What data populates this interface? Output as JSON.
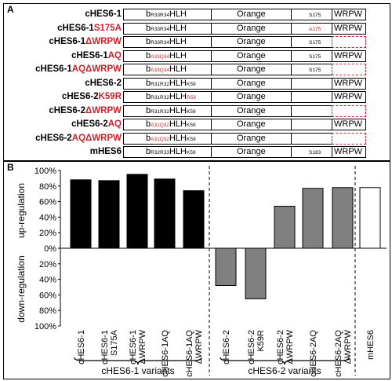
{
  "panel_a": {
    "label": "A",
    "rows": [
      {
        "name": "cHES6-1",
        "mut": "",
        "bsub": "R33R34",
        "bsub_red": false,
        "after": "HLH",
        "k": "",
        "k_red": false,
        "site": "S175",
        "site_red": false,
        "wrpw": "WRPW",
        "deleted": false
      },
      {
        "name": "cHES6-1",
        "mut": "S175A",
        "bsub": "R33R34",
        "bsub_red": false,
        "after": "HLH",
        "k": "",
        "k_red": false,
        "site": "A175",
        "site_red": true,
        "wrpw": "WRPW",
        "deleted": false
      },
      {
        "name": "cHES6-1",
        "mut": "ΔWRPW",
        "bsub": "R33R34",
        "bsub_red": false,
        "after": "HLH",
        "k": "",
        "k_red": false,
        "site": "S175",
        "site_red": false,
        "wrpw": "",
        "deleted": true
      },
      {
        "name": "cHES6-1",
        "mut": "AQ",
        "bsub": "A33Q34",
        "bsub_red": true,
        "after": "HLH",
        "k": "",
        "k_red": false,
        "site": "S175",
        "site_red": false,
        "wrpw": "WRPW",
        "deleted": false
      },
      {
        "name": "cHES6-1",
        "mut": "AQΔWRPW",
        "bsub": "A33Q34",
        "bsub_red": true,
        "after": "HLH",
        "k": "",
        "k_red": false,
        "site": "S175",
        "site_red": false,
        "wrpw": "",
        "deleted": true
      },
      {
        "name": "cHES6-2",
        "mut": "",
        "bsub": "R31R32",
        "bsub_red": false,
        "after": "HLH",
        "k": "K59",
        "k_red": false,
        "site": "",
        "site_red": false,
        "wrpw": "WRPW",
        "deleted": false
      },
      {
        "name": "cHES6-2",
        "mut": "K59R",
        "bsub": "R31R32",
        "bsub_red": false,
        "after": "HLH",
        "k": "R59",
        "k_red": true,
        "site": "",
        "site_red": false,
        "wrpw": "WRPW",
        "deleted": false
      },
      {
        "name": "cHES6-2",
        "mut": "ΔWRPW",
        "bsub": "R31R32",
        "bsub_red": false,
        "after": "HLH",
        "k": "K59",
        "k_red": false,
        "site": "",
        "site_red": false,
        "wrpw": "",
        "deleted": true
      },
      {
        "name": "cHES6-2",
        "mut": "AQ",
        "bsub": "A31Q32",
        "bsub_red": true,
        "after": "HLH",
        "k": "K59",
        "k_red": false,
        "site": "",
        "site_red": false,
        "wrpw": "WRPW",
        "deleted": false
      },
      {
        "name": "cHES6-2",
        "mut": "AQΔWRPW",
        "bsub": "A31Q32",
        "bsub_red": true,
        "after": "HLH",
        "k": "K59",
        "k_red": false,
        "site": "",
        "site_red": false,
        "wrpw": "",
        "deleted": true
      },
      {
        "name": "mHES6",
        "mut": "",
        "bsub": "R32R33",
        "bsub_red": false,
        "after": "HLH",
        "k": "K59",
        "k_red": false,
        "site": "S183",
        "site_red": false,
        "wrpw": "WRPW",
        "deleted": false
      }
    ],
    "orange_label": "Orange",
    "b_label": "b"
  },
  "panel_b": {
    "label": "B"
  },
  "chart_data": {
    "type": "bar",
    "categories": [
      "cHES6-1",
      "cHES6-1 S175A",
      "cHES6-1 ΔWRPW",
      "cHES6-1AQ",
      "cHES6-1AQ ΔWRPW",
      "cHES6-2",
      "cHES6-2 K59R",
      "cHES6-2 ΔWRPW",
      "cHES6-2AQ",
      "cHES6-2AQ ΔWRPW",
      "mHES6"
    ],
    "values": [
      88,
      87,
      95,
      89,
      74,
      -48,
      -65,
      54,
      77,
      78,
      78
    ],
    "bar_colors": [
      "#000000",
      "#000000",
      "#000000",
      "#000000",
      "#000000",
      "#808080",
      "#808080",
      "#808080",
      "#808080",
      "#808080",
      "#ffffff"
    ],
    "ylim": [
      -100,
      100
    ],
    "yticks": [
      "100%",
      "80%",
      "60%",
      "40%",
      "20%",
      "0%",
      "20%",
      "40%",
      "60%",
      "80%",
      "100%"
    ],
    "ylabel_up": "up-regulation",
    "ylabel_down": "down-regulation",
    "groups": [
      {
        "label": "cHES6-1 variants"
      },
      {
        "label": "cHES6-2 variants"
      }
    ]
  }
}
